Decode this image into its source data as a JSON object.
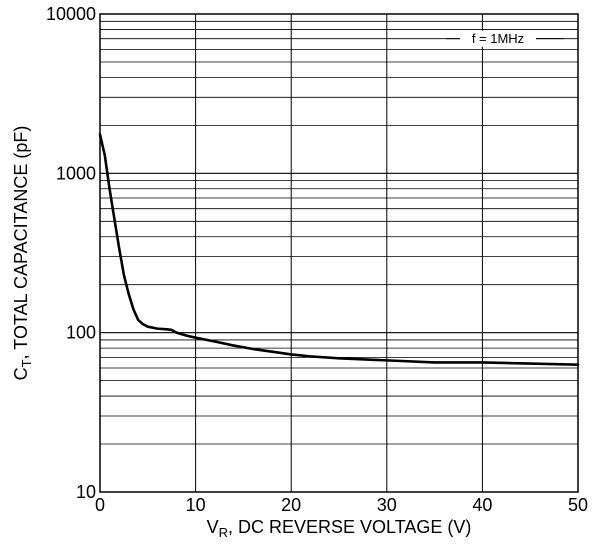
{
  "chart_data": {
    "type": "line",
    "xlabel": "V",
    "xlabel_sub": "R",
    "xlabel_rest": ", DC REVERSE VOLTAGE (V)",
    "ylabel": "C",
    "ylabel_sub": "T",
    "ylabel_rest": ", TOTAL CAPACITANCE (pF)",
    "xlim": [
      0,
      50
    ],
    "ylim": [
      10,
      10000
    ],
    "y_scale": "log",
    "grid": true,
    "x_ticks": [
      0,
      10,
      20,
      30,
      40,
      50
    ],
    "x_tick_labels": [
      "0",
      "10",
      "20",
      "30",
      "40",
      "50"
    ],
    "y_ticks": [
      10,
      100,
      1000,
      10000
    ],
    "y_tick_labels": [
      "10",
      "100",
      "1000",
      "10000"
    ],
    "annotation": "f = 1MHz",
    "series": [
      {
        "x": [
          0,
          0.5,
          1,
          1.5,
          2,
          2.5,
          3,
          3.5,
          4,
          4.5,
          5,
          6,
          7,
          7.5,
          8,
          9,
          10,
          12,
          14,
          16,
          18,
          20,
          22,
          25,
          30,
          35,
          40,
          45,
          50
        ],
        "y": [
          1750,
          1300,
          800,
          520,
          340,
          230,
          175,
          140,
          120,
          113,
          109,
          106,
          105,
          104,
          100,
          96,
          93,
          88,
          83,
          79,
          76,
          73,
          71,
          69,
          67,
          65,
          65,
          64,
          63
        ]
      }
    ]
  }
}
